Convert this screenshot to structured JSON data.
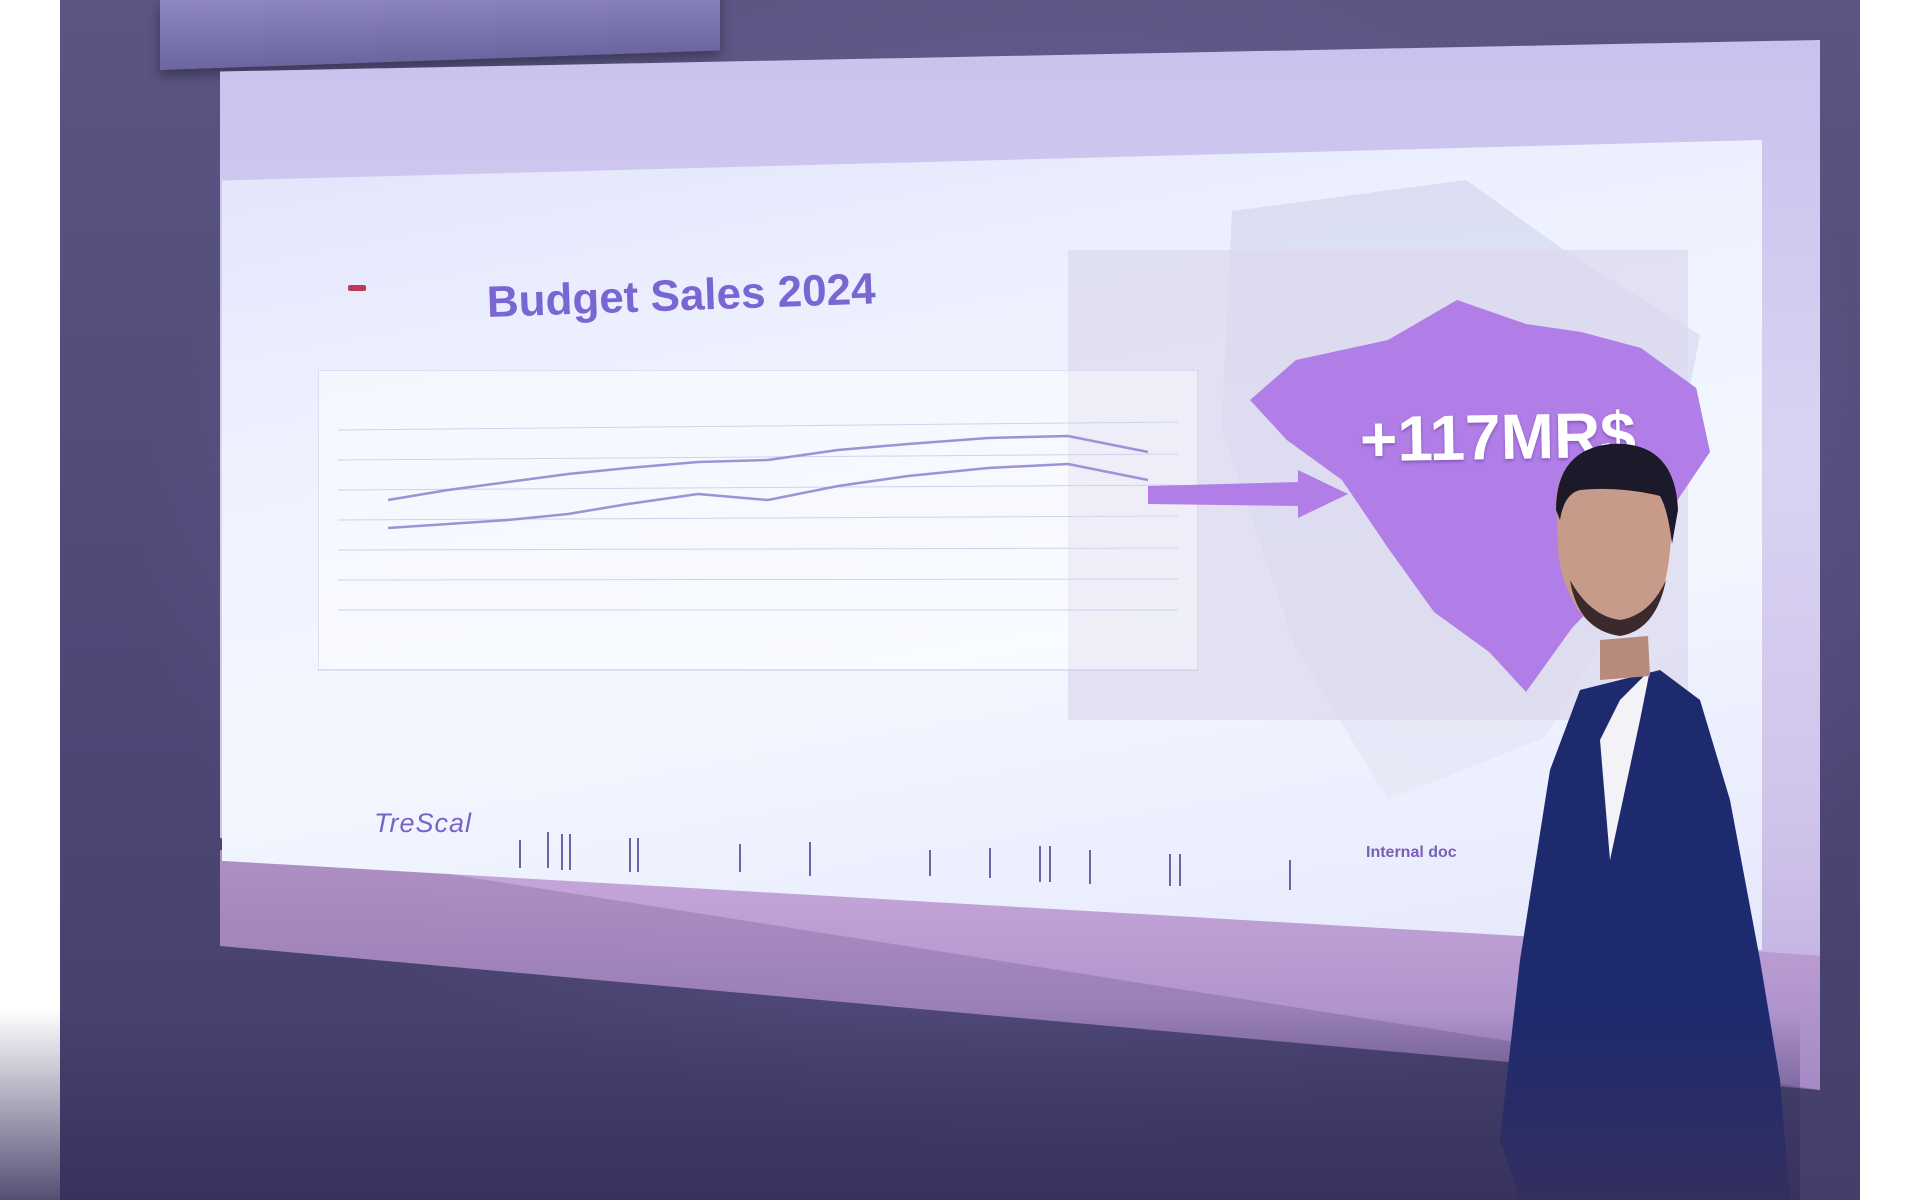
{
  "photo": {
    "description_hidden": false,
    "slide": {
      "title": "Budget Sales 2024",
      "highlight_value": "+117MR$",
      "logo_text": "TreScal",
      "footer_text": "Internal doc",
      "accent_color": "#b07ee6",
      "title_color": "#7a66d2"
    }
  }
}
